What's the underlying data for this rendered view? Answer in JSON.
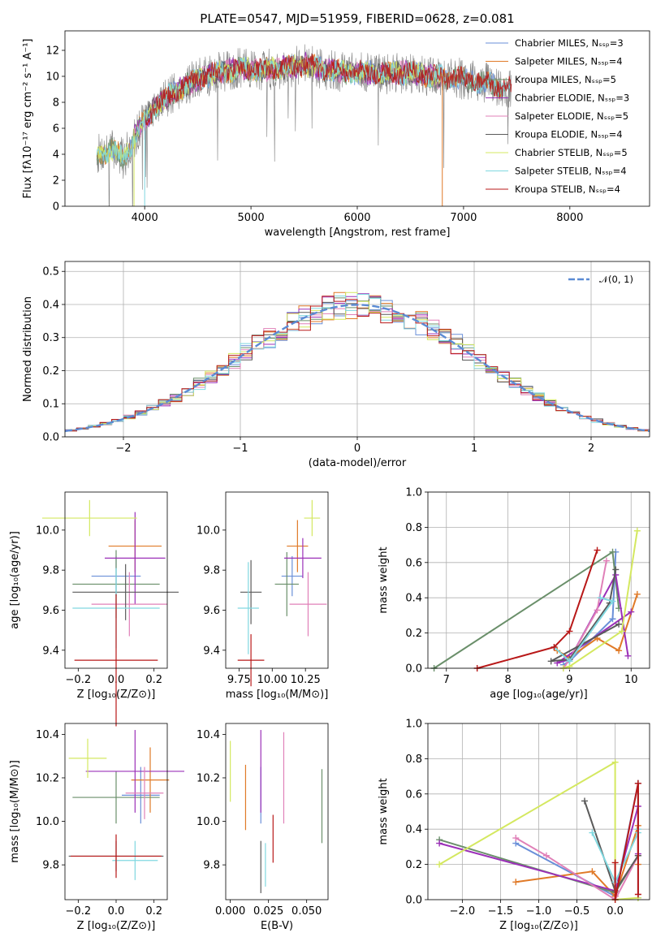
{
  "figure": {
    "title": "PLATE=0547, MJD=51959, FIBERID=0628, z=0.081"
  },
  "colors": {
    "c1": "#6a8fd8",
    "c2": "#e07a28",
    "c3": "#6a8f6a",
    "c4": "#9b30b8",
    "c5": "#e080b8",
    "c6": "#5a5a5a",
    "c7": "#d4e860",
    "c8": "#80d8e0",
    "c9": "#b81818",
    "grey": "#808080"
  },
  "chart_data": [
    {
      "id": "spectrum",
      "type": "line",
      "xlabel": "wavelength [Angstrom, rest frame]",
      "ylabel": "Flux [fλ10⁻¹⁷ erg cm⁻² s⁻¹ A⁻¹]",
      "xlim": [
        3250,
        8750
      ],
      "ylim": [
        0,
        13.5
      ],
      "xticks": [
        "4000",
        "5000",
        "6000",
        "7000",
        "8000"
      ],
      "yticks": [
        "0",
        "2",
        "4",
        "6",
        "8",
        "10",
        "12"
      ],
      "legend_position": "upper right",
      "legend": [
        "Chabrier MILES, N_SSP=3",
        "Salpeter MILES, N_SSP=4",
        "Kroupa MILES, N_SSP=5",
        "Chabrier ELODIE, N_SSP=3",
        "Salpeter ELODIE, N_SSP=5",
        "Kroupa ELODIE, N_SSP=4",
        "Chabrier STELIB, N_SSP=5",
        "Salpeter STELIB, N_SSP=4",
        "Kroupa STELIB, N_SSP=4"
      ],
      "model_ranges": [
        [
          3550,
          7300
        ],
        [
          3550,
          7350
        ],
        [
          3550,
          7400
        ],
        [
          3900,
          6800
        ],
        [
          3900,
          6800
        ],
        [
          3900,
          6800
        ],
        [
          3550,
          6800
        ],
        [
          3550,
          7450
        ],
        [
          4000,
          7450
        ]
      ],
      "envelope": {
        "wavelength": [
          3550,
          3700,
          3800,
          3950,
          4100,
          4300,
          4500,
          4700,
          4900,
          5100,
          5300,
          5500,
          5700,
          5900,
          6100,
          6300,
          6500,
          6700,
          6900,
          7100,
          7300,
          7450
        ],
        "flux": [
          4.0,
          4.4,
          3.6,
          6.0,
          7.7,
          8.9,
          9.8,
          10.3,
          10.6,
          10.5,
          10.6,
          10.9,
          10.5,
          10.3,
          10.3,
          10.2,
          10.3,
          10.0,
          9.9,
          9.7,
          9.3,
          9.0
        ]
      },
      "drops": {
        "kroupa_elodie_start": 3900,
        "kroupa_stelib_start": 4000,
        "elodie_end": 6800
      }
    },
    {
      "id": "residuals",
      "type": "bar",
      "xlabel": "(data-model)/error",
      "ylabel": "Normed distribution",
      "xlim": [
        -2.5,
        2.5
      ],
      "ylim": [
        0,
        0.53
      ],
      "xticks": [
        "−2",
        "−1",
        "0",
        "1",
        "2"
      ],
      "yticks": [
        "0.0",
        "0.1",
        "0.2",
        "0.3",
        "0.4",
        "0.5"
      ],
      "grid": true,
      "legend": [
        "𝒩(0, 1)"
      ],
      "legend_position": "upper right",
      "bin_width": 0.1,
      "reference_curve": "gaussian mean 0 sigma 1"
    },
    {
      "id": "age_vs_Z",
      "type": "scatter",
      "xlabel": "Z [log₁₀(Z/Z⊙)]",
      "ylabel": "age  [log₁₀(age/yr)]",
      "xlim": [
        -0.27,
        0.27
      ],
      "ylim": [
        9.31,
        10.19
      ],
      "xticks": [
        "−0.2",
        "0.0",
        "0.2"
      ],
      "yticks": [
        "9.4",
        "9.6",
        "9.8",
        "10.0"
      ],
      "points": [
        {
          "x": 0.0,
          "y": 9.77,
          "xerr": 0.13,
          "yerr": 0.1,
          "color": "c1"
        },
        {
          "x": 0.1,
          "y": 9.92,
          "xerr": 0.14,
          "yerr": 0.13,
          "color": "c2"
        },
        {
          "x": 0.0,
          "y": 9.73,
          "xerr": 0.23,
          "yerr": 0.17,
          "color": "c3"
        },
        {
          "x": 0.1,
          "y": 9.86,
          "xerr": 0.16,
          "yerr": 0.23,
          "color": "c4"
        },
        {
          "x": 0.07,
          "y": 9.63,
          "xerr": 0.2,
          "yerr": 0.16,
          "color": "c5"
        },
        {
          "x": 0.05,
          "y": 9.69,
          "xerr": 0.28,
          "yerr": 0.14,
          "color": "c6"
        },
        {
          "x": -0.14,
          "y": 10.06,
          "xerr": 0.25,
          "yerr": 0.09,
          "color": "c7"
        },
        {
          "x": 0.0,
          "y": 9.61,
          "xerr": 0.23,
          "yerr": 0.2,
          "color": "c8"
        },
        {
          "x": 0.0,
          "y": 9.35,
          "xerr": 0.22,
          "yerr": 0.33,
          "color": "c9"
        }
      ]
    },
    {
      "id": "age_vs_mass",
      "type": "scatter",
      "xlabel": "mass [log₁₀(M/M⊙)]",
      "ylabel": "",
      "xlim": [
        9.65,
        10.42
      ],
      "ylim": [
        9.31,
        10.19
      ],
      "xticks": [
        "9.75",
        "10.00",
        "10.25"
      ],
      "yticks": [
        "9.4",
        "9.6",
        "9.8",
        "10.0"
      ],
      "points": [
        {
          "x": 10.15,
          "y": 9.77,
          "xerr": 0.08,
          "yerr": 0.1,
          "color": "c1"
        },
        {
          "x": 10.19,
          "y": 9.92,
          "xerr": 0.08,
          "yerr": 0.13,
          "color": "c2"
        },
        {
          "x": 10.11,
          "y": 9.73,
          "xerr": 0.09,
          "yerr": 0.16,
          "color": "c3"
        },
        {
          "x": 10.23,
          "y": 9.86,
          "xerr": 0.14,
          "yerr": 0.1,
          "color": "c4"
        },
        {
          "x": 10.27,
          "y": 9.63,
          "xerr": 0.14,
          "yerr": 0.16,
          "color": "c5"
        },
        {
          "x": 9.84,
          "y": 9.69,
          "xerr": 0.08,
          "yerr": 0.16,
          "color": "c6"
        },
        {
          "x": 10.3,
          "y": 10.06,
          "xerr": 0.06,
          "yerr": 0.09,
          "color": "c7"
        },
        {
          "x": 9.82,
          "y": 9.61,
          "xerr": 0.08,
          "yerr": 0.23,
          "color": "c8"
        },
        {
          "x": 9.84,
          "y": 9.35,
          "xerr": 0.1,
          "yerr": 0.13,
          "color": "c9"
        }
      ]
    },
    {
      "id": "weight_vs_age",
      "type": "line",
      "xlabel": "age  [log₁₀(age/yr)]",
      "ylabel": "mass weight",
      "xlim": [
        6.7,
        10.3
      ],
      "ylim": [
        0,
        1.0
      ],
      "xticks": [
        "7",
        "8",
        "9",
        "10"
      ],
      "yticks": [
        "0.0",
        "0.2",
        "0.4",
        "0.6",
        "0.8",
        "1.0"
      ],
      "grid": true,
      "series": [
        {
          "color": "c1",
          "x": [
            9.75,
            9.7,
            9.0,
            8.9
          ],
          "y": [
            0.66,
            0.28,
            0.04,
            0.02
          ]
        },
        {
          "color": "c2",
          "x": [
            10.1,
            9.8,
            9.45,
            9.0,
            8.8
          ],
          "y": [
            0.42,
            0.1,
            0.17,
            0.06,
            0.1
          ]
        },
        {
          "color": "c3",
          "x": [
            6.8,
            9.7,
            9.8
          ],
          "y": [
            0.0,
            0.66,
            0.34
          ]
        },
        {
          "color": "c4",
          "x": [
            9.95,
            9.75,
            9.0,
            8.8,
            10.0
          ],
          "y": [
            0.07,
            0.53,
            0.05,
            0.03,
            0.32
          ]
        },
        {
          "color": "c5",
          "x": [
            9.6,
            9.45,
            9.0,
            8.9
          ],
          "y": [
            0.61,
            0.33,
            0.05,
            0.0
          ]
        },
        {
          "color": "c6",
          "x": [
            9.75,
            9.65,
            9.0,
            8.7,
            9.8
          ],
          "y": [
            0.56,
            0.37,
            0.05,
            0.04,
            0.25
          ]
        },
        {
          "color": "c7",
          "x": [
            10.1,
            9.85,
            9.0,
            8.9
          ],
          "y": [
            0.78,
            0.21,
            0.01,
            0.0
          ]
        },
        {
          "color": "c8",
          "x": [
            9.5,
            9.7,
            9.0,
            8.75
          ],
          "y": [
            0.4,
            0.38,
            0.04,
            0.12
          ]
        },
        {
          "color": "c9",
          "x": [
            9.45,
            9.0,
            8.75,
            7.5
          ],
          "y": [
            0.67,
            0.21,
            0.12,
            0.0
          ]
        }
      ]
    },
    {
      "id": "mass_vs_Z",
      "type": "scatter",
      "xlabel": "Z [log₁₀(Z/Z⊙)]",
      "ylabel": "mass [log₁₀(M/M⊙)]",
      "xlim": [
        -0.27,
        0.27
      ],
      "ylim": [
        9.64,
        10.45
      ],
      "xticks": [
        "−0.2",
        "0.0",
        "0.2"
      ],
      "yticks": [
        "9.8",
        "10.0",
        "10.2",
        "10.4"
      ],
      "points": [
        {
          "x": 0.13,
          "y": 10.12,
          "xerr": 0.1,
          "yerr": 0.13,
          "color": "c1"
        },
        {
          "x": 0.18,
          "y": 10.19,
          "xerr": 0.1,
          "yerr": 0.15,
          "color": "c2"
        },
        {
          "x": 0.0,
          "y": 10.11,
          "xerr": 0.23,
          "yerr": 0.12,
          "color": "c3"
        },
        {
          "x": 0.1,
          "y": 10.23,
          "xerr": 0.26,
          "yerr": 0.19,
          "color": "c4"
        },
        {
          "x": 0.15,
          "y": 10.13,
          "xerr": 0.1,
          "yerr": 0.12,
          "color": "c5"
        },
        {
          "x": 0.0,
          "y": 9.84,
          "xerr": 0.25,
          "yerr": 0.07,
          "color": "c6"
        },
        {
          "x": -0.15,
          "y": 10.29,
          "xerr": 0.1,
          "yerr": 0.09,
          "color": "c7"
        },
        {
          "x": 0.1,
          "y": 9.82,
          "xerr": 0.12,
          "yerr": 0.09,
          "color": "c8"
        },
        {
          "x": 0.0,
          "y": 9.84,
          "xerr": 0.24,
          "yerr": 0.1,
          "color": "c9"
        }
      ]
    },
    {
      "id": "mass_vs_ebv",
      "type": "scatter",
      "xlabel": "E(B-V)",
      "ylabel": "",
      "xlim": [
        -0.003,
        0.064
      ],
      "ylim": [
        9.64,
        10.45
      ],
      "xticks": [
        "0.000",
        "0.025",
        "0.050"
      ],
      "yticks": [
        "9.8",
        "10.0",
        "10.2",
        "10.4"
      ],
      "points": [
        {
          "x": 0.02,
          "y": 10.12,
          "yerr": 0.13,
          "color": "c1"
        },
        {
          "x": 0.01,
          "y": 10.11,
          "yerr": 0.15,
          "color": "c2"
        },
        {
          "x": 0.06,
          "y": 10.07,
          "yerr": 0.17,
          "color": "c3"
        },
        {
          "x": 0.02,
          "y": 10.23,
          "yerr": 0.19,
          "color": "c4"
        },
        {
          "x": 0.035,
          "y": 10.2,
          "yerr": 0.21,
          "color": "c5"
        },
        {
          "x": 0.02,
          "y": 9.79,
          "yerr": 0.12,
          "color": "c6"
        },
        {
          "x": 0.0,
          "y": 10.23,
          "yerr": 0.14,
          "color": "c7"
        },
        {
          "x": 0.023,
          "y": 9.8,
          "yerr": 0.1,
          "color": "c8"
        },
        {
          "x": 0.028,
          "y": 9.92,
          "yerr": 0.11,
          "color": "c9"
        }
      ]
    },
    {
      "id": "weight_vs_Z",
      "type": "line",
      "xlabel": "Z [log₁₀(Z/Z⊙)]",
      "ylabel": "mass weight",
      "xlim": [
        -2.45,
        0.45
      ],
      "ylim": [
        0,
        1.0
      ],
      "xticks": [
        "−2.0",
        "−1.5",
        "−1.0",
        "−0.5",
        "0.0"
      ],
      "yticks": [
        "0.0",
        "0.2",
        "0.4",
        "0.6",
        "0.8",
        "1.0"
      ],
      "grid": true,
      "series": [
        {
          "color": "c1",
          "x": [
            -1.3,
            0.0,
            0.3,
            0.3
          ],
          "y": [
            0.32,
            0.02,
            0.66,
            0.01
          ]
        },
        {
          "color": "c2",
          "x": [
            -1.3,
            -0.3,
            0.0,
            0.3,
            0.3
          ],
          "y": [
            0.1,
            0.16,
            0.02,
            0.42,
            0.2
          ]
        },
        {
          "color": "c3",
          "x": [
            -2.3,
            0.0,
            0.3
          ],
          "y": [
            0.34,
            0.04,
            0.25
          ]
        },
        {
          "color": "c4",
          "x": [
            -2.3,
            0.0,
            0.3,
            0.3
          ],
          "y": [
            0.32,
            0.05,
            0.53,
            0.26
          ]
        },
        {
          "color": "c5",
          "x": [
            -1.3,
            -0.9,
            0.0,
            0.3
          ],
          "y": [
            0.35,
            0.25,
            0.0,
            0.25
          ]
        },
        {
          "color": "c6",
          "x": [
            -0.4,
            0.0,
            0.3,
            0.3
          ],
          "y": [
            0.56,
            0.05,
            0.25,
            0.66
          ]
        },
        {
          "color": "c7",
          "x": [
            -2.3,
            0.0,
            0.0,
            0.3
          ],
          "y": [
            0.2,
            0.78,
            0.0,
            0.01
          ]
        },
        {
          "color": "c8",
          "x": [
            -0.3,
            0.0,
            0.3,
            0.3
          ],
          "y": [
            0.38,
            0.1,
            0.38,
            0.4
          ]
        },
        {
          "color": "c9",
          "x": [
            0.0,
            0.0,
            0.3,
            0.3
          ],
          "y": [
            0.21,
            0.0,
            0.66,
            0.03
          ]
        }
      ]
    }
  ]
}
